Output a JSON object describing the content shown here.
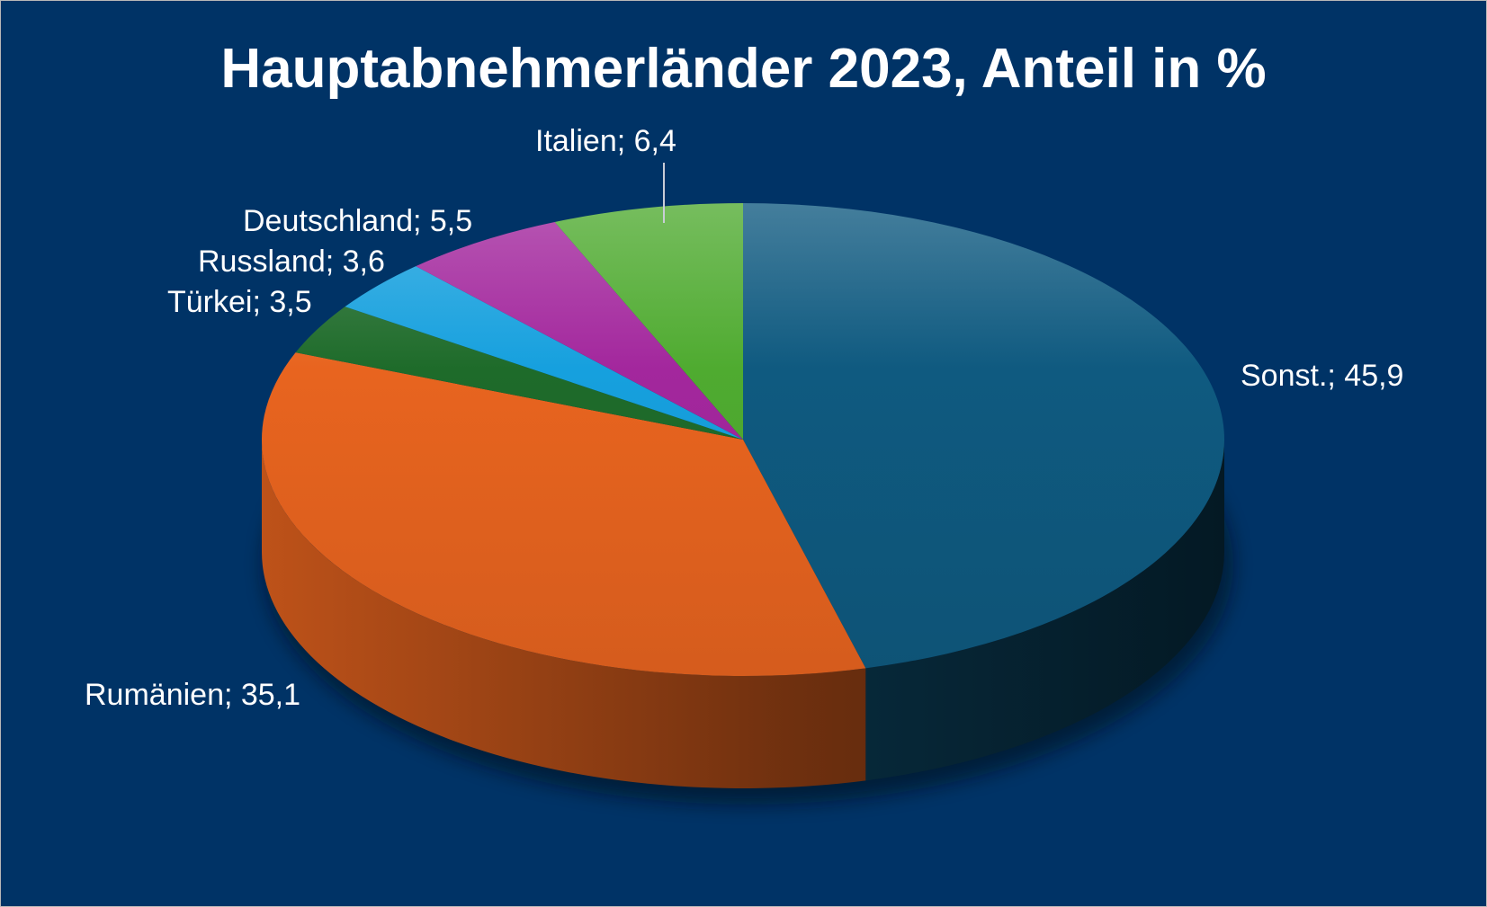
{
  "chart_data": {
    "type": "pie",
    "title": "Hauptabnehmerländer 2023, Anteil in %",
    "three_d": true,
    "slices": [
      {
        "label": "Sonst.",
        "value": 45.9,
        "display": "Sonst.; 45,9",
        "color": "#0f5a80"
      },
      {
        "label": "Rumänien",
        "value": 35.1,
        "display": "Rumänien; 35,1",
        "color": "#e8641f"
      },
      {
        "label": "Türkei",
        "value": 3.5,
        "display": "Türkei; 3,5",
        "color": "#1e6b2a"
      },
      {
        "label": "Russland",
        "value": 3.6,
        "display": "Russland; 3,6",
        "color": "#16a0de"
      },
      {
        "label": "Deutschland",
        "value": 5.5,
        "display": "Deutschland; 5,5",
        "color": "#a3279d"
      },
      {
        "label": "Italien",
        "value": 6.4,
        "display": "Italien; 6,4",
        "color": "#4fab30"
      }
    ]
  },
  "colors": {
    "background": "#003366",
    "text": "#ffffff",
    "leader_line": "#c8cdd6"
  }
}
